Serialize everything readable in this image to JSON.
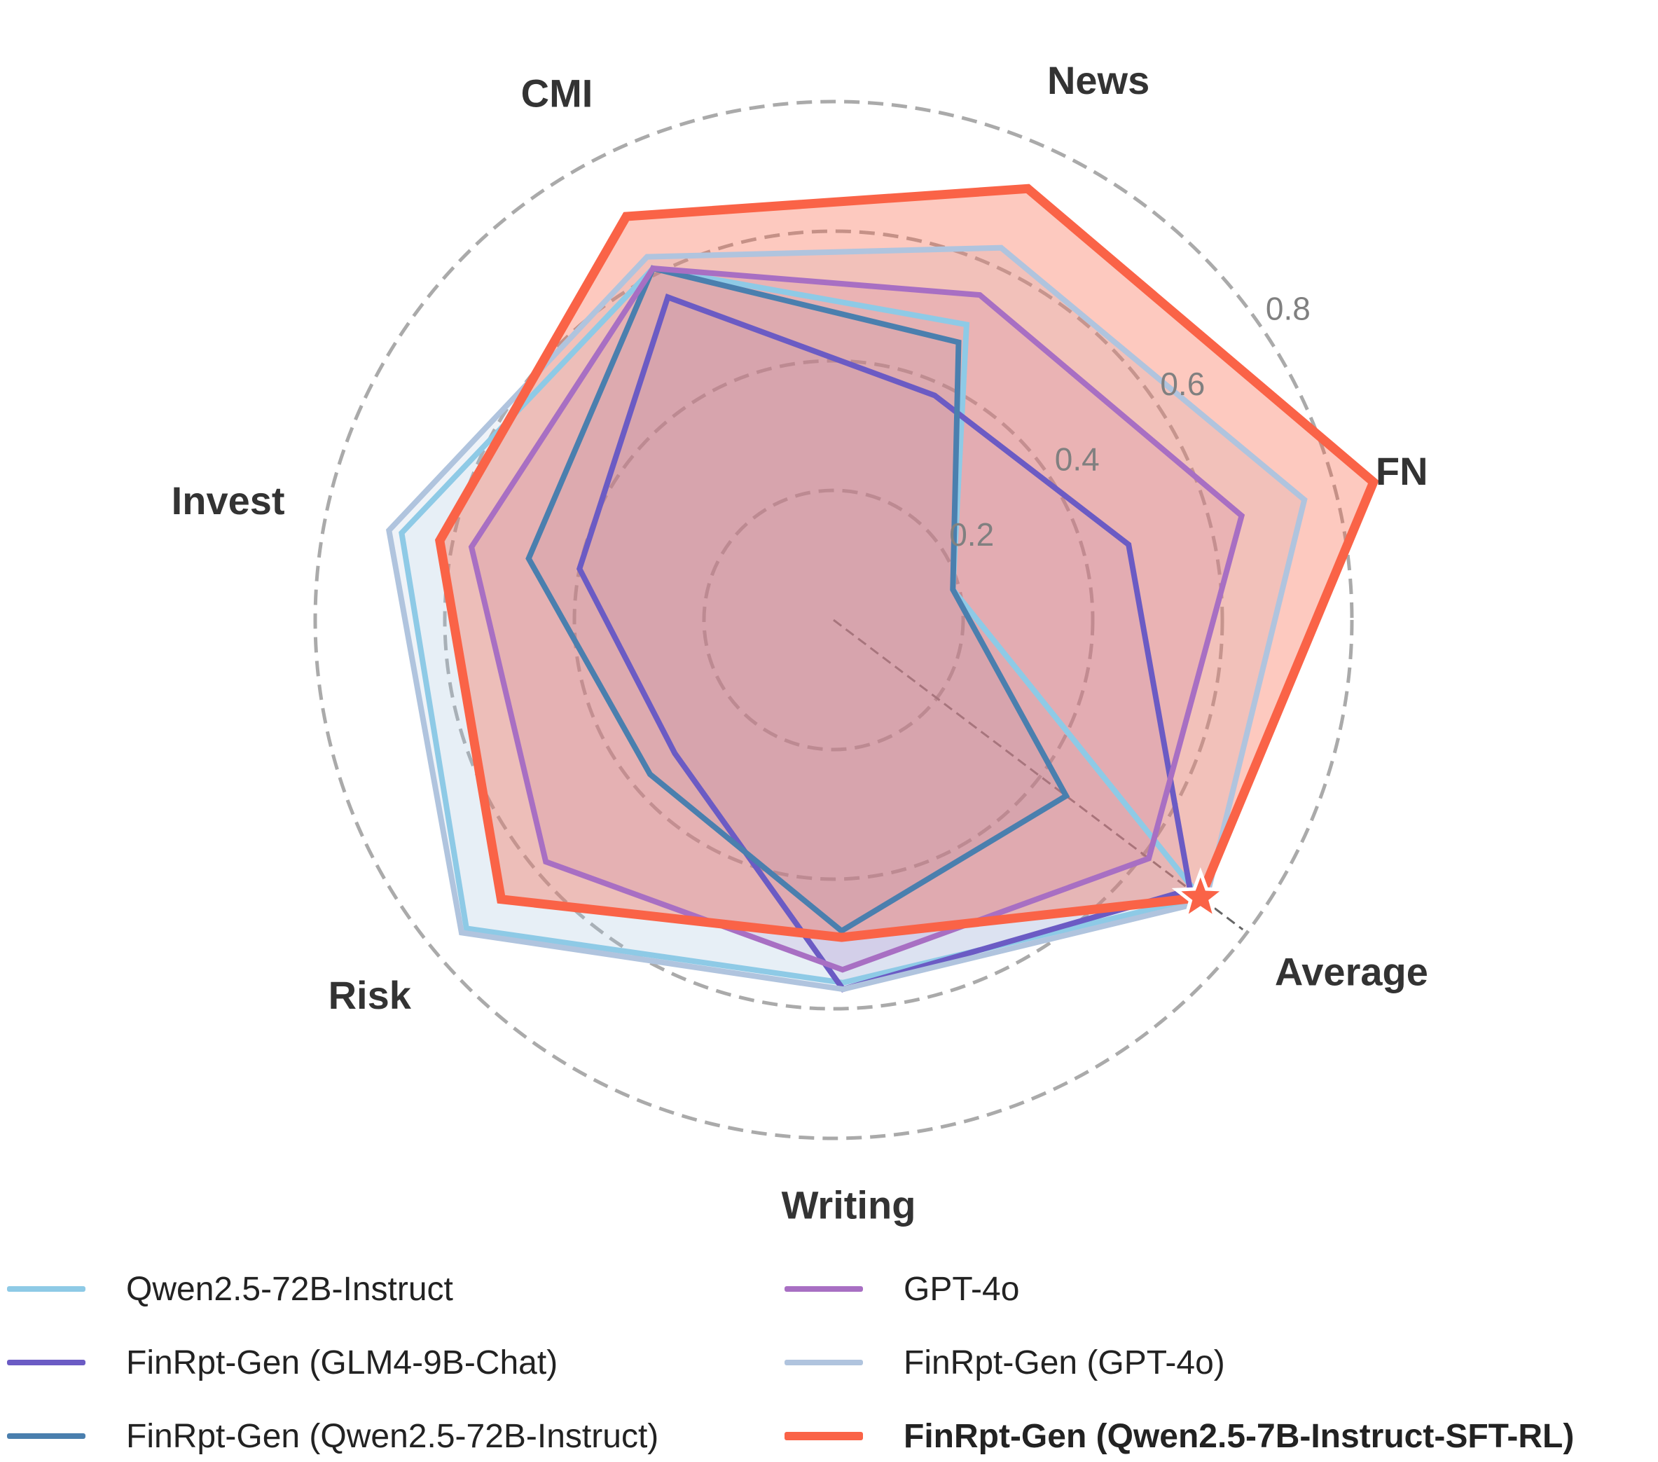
{
  "chart_data": {
    "type": "radar",
    "axes": [
      "FN",
      "News",
      "CMI",
      "Invest",
      "Risk",
      "Writing",
      "Average"
    ],
    "rlim": [
      0,
      0.8
    ],
    "rticks": [
      0.2,
      0.4,
      0.6,
      0.8
    ],
    "rtick_labels": [
      "0.2",
      "0.4",
      "0.6",
      "0.8"
    ],
    "grid": "dashed",
    "legend_position": "bottom",
    "highlight": {
      "axis": "Average",
      "series": "FinRpt-Gen (Qwen2.5-7B-Instruct-SFT-RL)",
      "marker": "star"
    },
    "series": [
      {
        "name": "Qwen2.5-72B-Instruct",
        "color": "#8ecae6",
        "values": [
          0.19,
          0.5,
          0.61,
          0.68,
          0.74,
          0.56,
          0.71
        ],
        "bold": false
      },
      {
        "name": "FinRpt-Gen (GLM4-9B-Chat)",
        "color": "#6b5bc4",
        "values": [
          0.47,
          0.38,
          0.56,
          0.4,
          0.32,
          0.57,
          0.69
        ],
        "bold": false
      },
      {
        "name": "FinRpt-Gen (Qwen2.5-72B-Instruct)",
        "color": "#4a7fae",
        "values": [
          0.19,
          0.47,
          0.61,
          0.48,
          0.37,
          0.48,
          0.45
        ],
        "bold": false
      },
      {
        "name": "GPT-4o",
        "color": "#a86fc3",
        "values": [
          0.65,
          0.55,
          0.61,
          0.57,
          0.58,
          0.54,
          0.61
        ],
        "bold": false
      },
      {
        "name": "FinRpt-Gen (GPT-4o)",
        "color": "#b0c4de",
        "values": [
          0.75,
          0.63,
          0.63,
          0.7,
          0.75,
          0.57,
          0.72
        ],
        "bold": false
      },
      {
        "name": "FinRpt-Gen (Qwen2.5-7B-Instruct-SFT-RL)",
        "color": "#fa6347",
        "values": [
          0.86,
          0.73,
          0.7,
          0.62,
          0.67,
          0.49,
          0.71
        ],
        "bold": true
      }
    ]
  }
}
